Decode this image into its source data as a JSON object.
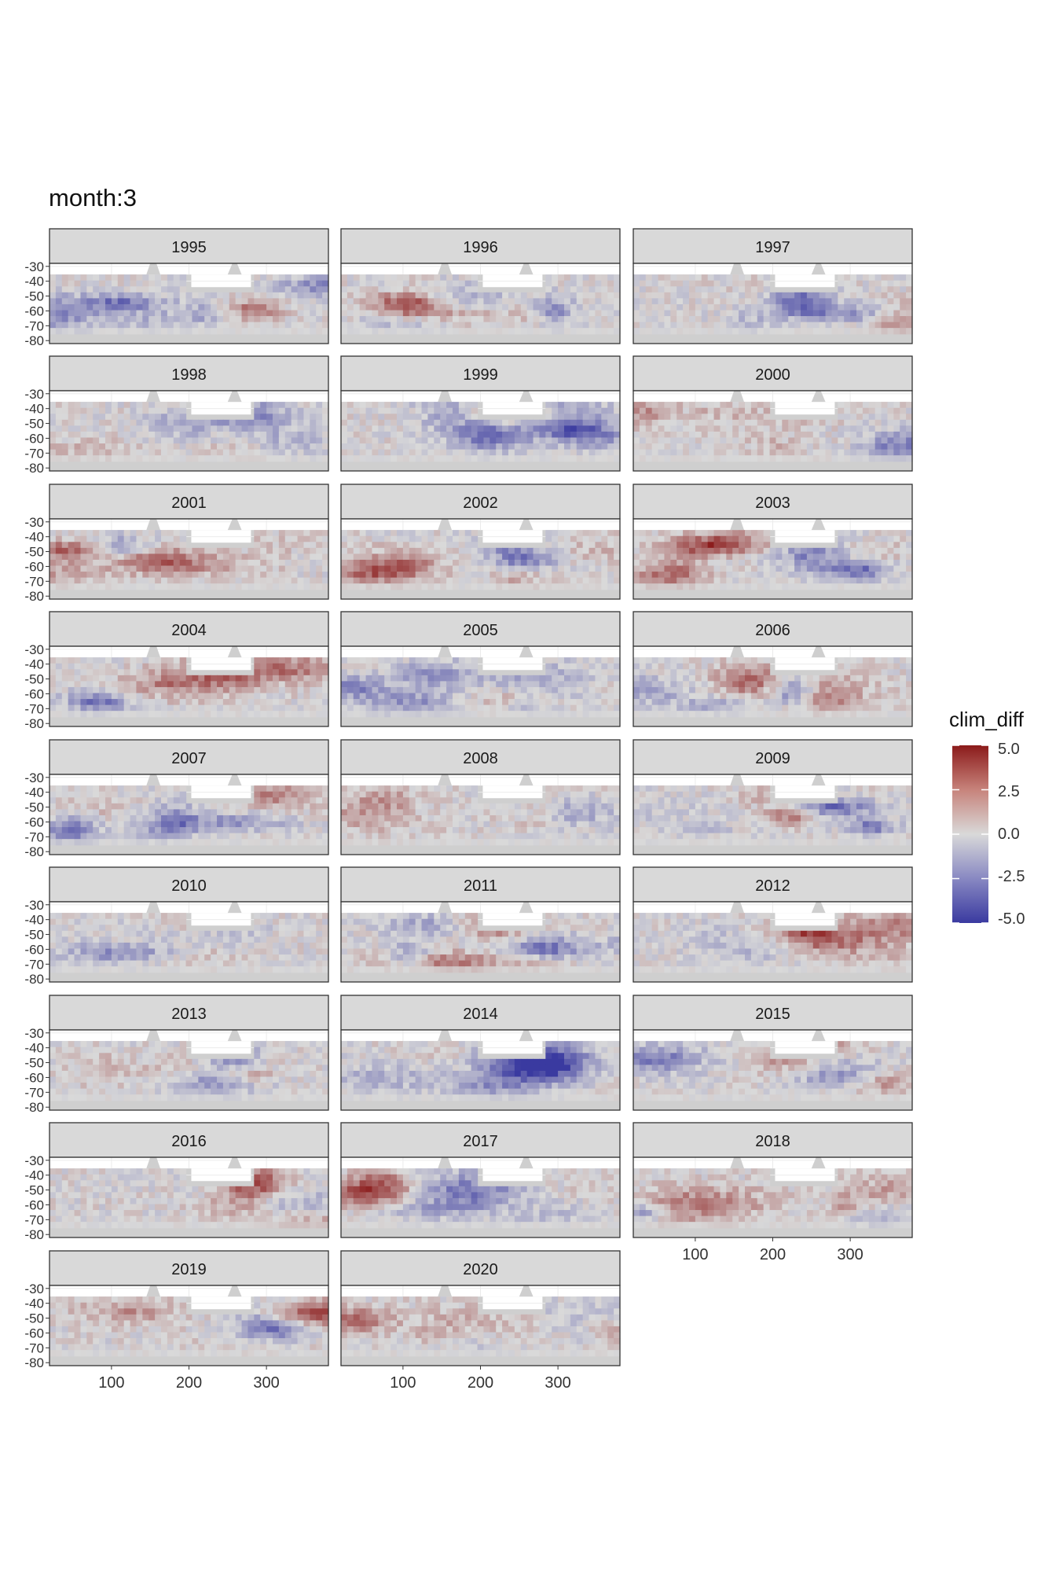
{
  "title": "month:3",
  "legend": {
    "title": "clim_diff",
    "breaks": [
      "5.0",
      "2.5",
      "0.0",
      "-2.5",
      "-5.0"
    ],
    "colors": {
      "high": "#8b1a1a",
      "mid": "#d9d9d9",
      "low": "#3a3aa0"
    }
  },
  "chart_data": {
    "type": "heatmap",
    "facet_by": "year",
    "facets": [
      "1995",
      "1996",
      "1997",
      "1998",
      "1999",
      "2000",
      "2001",
      "2002",
      "2003",
      "2004",
      "2005",
      "2006",
      "2007",
      "2008",
      "2009",
      "2010",
      "2011",
      "2012",
      "2013",
      "2014",
      "2015",
      "2016",
      "2017",
      "2018",
      "2019",
      "2020"
    ],
    "x_ticks": [
      "100",
      "200",
      "300"
    ],
    "y_ticks": [
      "-30",
      "-40",
      "-50",
      "-60",
      "-70",
      "-80"
    ],
    "xlim": [
      20,
      380
    ],
    "ylim": [
      -82,
      -28
    ],
    "fill_variable": "clim_diff",
    "fill_limits": [
      -5,
      5
    ],
    "land_color": "#cfcfcf",
    "background_color": "#ebebeb",
    "colors": {
      "panel_fill": "#cfcfcf",
      "strip_fill": "#d9d9d9",
      "panel_border": "#333333",
      "grid": "#ffffff"
    }
  }
}
